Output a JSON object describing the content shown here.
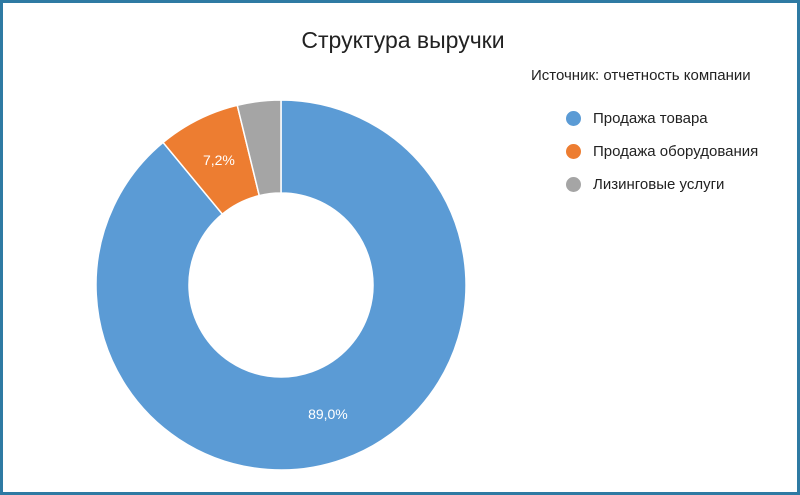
{
  "chart_data": {
    "type": "pie",
    "title": "Структура выручки",
    "subtitle": "Источник: отчетность компании",
    "categories": [
      "Продажа товара",
      "Продажа оборудования",
      "Лизинговые услуги"
    ],
    "values": [
      89.0,
      7.2,
      3.8
    ],
    "data_labels": [
      "89,0%",
      "7,2%",
      ""
    ],
    "colors": [
      "#5b9bd5",
      "#ed7d31",
      "#a5a5a5"
    ],
    "donut": true,
    "legend_position": "right"
  }
}
